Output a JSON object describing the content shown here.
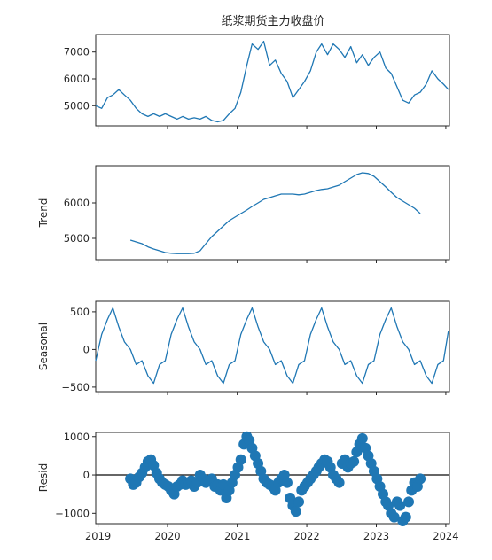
{
  "chart_data": [
    {
      "type": "line",
      "title": "纸浆期货主力收盘价",
      "xlabel": "",
      "ylabel": "",
      "xlim": [
        "2018-12-20",
        "2024-01-20"
      ],
      "ylim": [
        4250,
        7650
      ],
      "yticks": [
        5000,
        6000,
        7000
      ],
      "color": "#1f77b4",
      "x": [
        "2018-12-20",
        "2019-01-20",
        "2019-02-20",
        "2019-03-20",
        "2019-04-20",
        "2019-05-20",
        "2019-06-20",
        "2019-07-20",
        "2019-08-20",
        "2019-09-20",
        "2019-10-20",
        "2019-11-20",
        "2019-12-20",
        "2020-01-20",
        "2020-02-20",
        "2020-03-20",
        "2020-04-20",
        "2020-05-20",
        "2020-06-20",
        "2020-07-20",
        "2020-08-20",
        "2020-09-20",
        "2020-10-20",
        "2020-11-20",
        "2020-12-20",
        "2021-01-20",
        "2021-02-20",
        "2021-03-20",
        "2021-04-20",
        "2021-05-20",
        "2021-06-20",
        "2021-07-20",
        "2021-08-20",
        "2021-09-20",
        "2021-10-20",
        "2021-11-20",
        "2021-12-20",
        "2022-01-20",
        "2022-02-20",
        "2022-03-20",
        "2022-04-20",
        "2022-05-20",
        "2022-06-20",
        "2022-07-20",
        "2022-08-20",
        "2022-09-20",
        "2022-10-20",
        "2022-11-20",
        "2022-12-20",
        "2023-01-20",
        "2023-02-20",
        "2023-03-20",
        "2023-04-20",
        "2023-05-20",
        "2023-06-20",
        "2023-07-20",
        "2023-08-20",
        "2023-09-20",
        "2023-10-20",
        "2023-11-20",
        "2023-12-20",
        "2024-01-15"
      ],
      "y": [
        5000,
        4900,
        5300,
        5400,
        5600,
        5400,
        5200,
        4900,
        4700,
        4600,
        4700,
        4600,
        4700,
        4600,
        4500,
        4600,
        4500,
        4550,
        4500,
        4600,
        4450,
        4400,
        4450,
        4700,
        4900,
        5500,
        6500,
        7300,
        7100,
        7400,
        6500,
        6700,
        6200,
        5900,
        5300,
        5600,
        5900,
        6300,
        7000,
        7300,
        6900,
        7300,
        7100,
        6800,
        7200,
        6600,
        6900,
        6500,
        6800,
        7000,
        6400,
        6200,
        5700,
        5200,
        5100,
        5400,
        5500,
        5800,
        6300,
        6000,
        5800,
        5600
      ]
    },
    {
      "type": "line",
      "xlabel": "",
      "ylabel": "Trend",
      "xlim": [
        "2018-12-20",
        "2024-01-20"
      ],
      "ylim": [
        4400,
        7050
      ],
      "yticks": [
        5000,
        6000
      ],
      "color": "#1f77b4",
      "x": [
        "2019-06-20",
        "2019-07-20",
        "2019-08-20",
        "2019-09-20",
        "2019-10-20",
        "2019-11-20",
        "2019-12-20",
        "2020-01-20",
        "2020-02-20",
        "2020-03-20",
        "2020-04-20",
        "2020-05-20",
        "2020-06-20",
        "2020-07-20",
        "2020-08-20",
        "2020-09-20",
        "2020-10-20",
        "2020-11-20",
        "2020-12-20",
        "2021-01-20",
        "2021-02-20",
        "2021-03-20",
        "2021-04-20",
        "2021-05-20",
        "2021-06-20",
        "2021-07-20",
        "2021-08-20",
        "2021-09-20",
        "2021-10-20",
        "2021-11-20",
        "2021-12-20",
        "2022-01-20",
        "2022-02-20",
        "2022-03-20",
        "2022-04-20",
        "2022-05-20",
        "2022-06-20",
        "2022-07-20",
        "2022-08-20",
        "2022-09-20",
        "2022-10-20",
        "2022-11-20",
        "2022-12-20",
        "2023-01-20",
        "2023-02-20",
        "2023-03-20",
        "2023-04-20",
        "2023-05-20",
        "2023-06-20",
        "2023-07-20",
        "2023-08-20"
      ],
      "y": [
        4950,
        4900,
        4850,
        4760,
        4700,
        4650,
        4600,
        4580,
        4570,
        4570,
        4570,
        4580,
        4650,
        4850,
        5050,
        5200,
        5350,
        5500,
        5600,
        5700,
        5800,
        5900,
        6000,
        6100,
        6150,
        6200,
        6250,
        6250,
        6250,
        6230,
        6250,
        6300,
        6350,
        6380,
        6400,
        6450,
        6500,
        6600,
        6700,
        6800,
        6850,
        6830,
        6750,
        6600,
        6450,
        6300,
        6150,
        6050,
        5950,
        5850,
        5700
      ]
    },
    {
      "type": "line",
      "xlabel": "",
      "ylabel": "Seasonal",
      "xlim": [
        "2018-12-20",
        "2024-01-20"
      ],
      "ylim": [
        -560,
        640
      ],
      "yticks": [
        -500,
        0,
        500
      ],
      "color": "#1f77b4",
      "x": [
        "2018-12-20",
        "2019-01-20",
        "2019-02-20",
        "2019-03-20",
        "2019-04-20",
        "2019-05-20",
        "2019-06-20",
        "2019-07-20",
        "2019-08-20",
        "2019-09-20",
        "2019-10-20",
        "2019-11-20",
        "2019-12-20",
        "2020-01-20",
        "2020-02-20",
        "2020-03-20",
        "2020-04-20",
        "2020-05-20",
        "2020-06-20",
        "2020-07-20",
        "2020-08-20",
        "2020-09-20",
        "2020-10-20",
        "2020-11-20",
        "2020-12-20",
        "2021-01-20",
        "2021-02-20",
        "2021-03-20",
        "2021-04-20",
        "2021-05-20",
        "2021-06-20",
        "2021-07-20",
        "2021-08-20",
        "2021-09-20",
        "2021-10-20",
        "2021-11-20",
        "2021-12-20",
        "2022-01-20",
        "2022-02-20",
        "2022-03-20",
        "2022-04-20",
        "2022-05-20",
        "2022-06-20",
        "2022-07-20",
        "2022-08-20",
        "2022-09-20",
        "2022-10-20",
        "2022-11-20",
        "2022-12-20",
        "2023-01-20",
        "2023-02-20",
        "2023-03-20",
        "2023-04-20",
        "2023-05-20",
        "2023-06-20",
        "2023-07-20",
        "2023-08-20",
        "2023-09-20",
        "2023-10-20",
        "2023-11-20",
        "2023-12-20",
        "2024-01-15"
      ],
      "y": [
        -150,
        200,
        400,
        550,
        300,
        100,
        0,
        -200,
        -150,
        -350,
        -450,
        -200,
        -150,
        200,
        400,
        550,
        300,
        100,
        0,
        -200,
        -150,
        -350,
        -450,
        -200,
        -150,
        200,
        400,
        550,
        300,
        100,
        0,
        -200,
        -150,
        -350,
        -450,
        -200,
        -150,
        200,
        400,
        550,
        300,
        100,
        0,
        -200,
        -150,
        -350,
        -450,
        -200,
        -150,
        200,
        400,
        550,
        300,
        100,
        0,
        -200,
        -150,
        -350,
        -450,
        -200,
        -150,
        250
      ]
    },
    {
      "type": "scatter",
      "xlabel": "",
      "ylabel": "Resid",
      "xlim": [
        "2018-12-20",
        "2024-01-20"
      ],
      "ylim": [
        -1270,
        1110
      ],
      "yticks": [
        -1000,
        0,
        1000
      ],
      "xticks": [
        "2019",
        "2020",
        "2021",
        "2022",
        "2023",
        "2024"
      ],
      "baseline": 0,
      "color": "#1f77b4",
      "x": [
        "2019-06-20",
        "2019-07-05",
        "2019-07-20",
        "2019-08-05",
        "2019-08-20",
        "2019-09-05",
        "2019-09-20",
        "2019-10-05",
        "2019-10-20",
        "2019-11-05",
        "2019-11-20",
        "2019-12-05",
        "2019-12-20",
        "2020-01-05",
        "2020-01-20",
        "2020-02-05",
        "2020-02-20",
        "2020-03-05",
        "2020-03-20",
        "2020-04-05",
        "2020-04-20",
        "2020-05-05",
        "2020-05-20",
        "2020-06-05",
        "2020-06-20",
        "2020-07-05",
        "2020-07-20",
        "2020-08-05",
        "2020-08-20",
        "2020-09-05",
        "2020-09-20",
        "2020-10-05",
        "2020-10-20",
        "2020-11-05",
        "2020-11-20",
        "2020-12-05",
        "2020-12-20",
        "2021-01-05",
        "2021-01-20",
        "2021-02-05",
        "2021-02-20",
        "2021-03-05",
        "2021-03-20",
        "2021-04-05",
        "2021-04-20",
        "2021-05-05",
        "2021-05-20",
        "2021-06-05",
        "2021-06-20",
        "2021-07-05",
        "2021-07-20",
        "2021-08-05",
        "2021-08-20",
        "2021-09-05",
        "2021-09-20",
        "2021-10-05",
        "2021-10-20",
        "2021-11-05",
        "2021-11-20",
        "2021-12-05",
        "2021-12-20",
        "2022-01-05",
        "2022-01-20",
        "2022-02-05",
        "2022-02-20",
        "2022-03-05",
        "2022-03-20",
        "2022-04-05",
        "2022-04-20",
        "2022-05-05",
        "2022-05-20",
        "2022-06-05",
        "2022-06-20",
        "2022-07-05",
        "2022-07-20",
        "2022-08-05",
        "2022-08-20",
        "2022-09-05",
        "2022-09-20",
        "2022-10-05",
        "2022-10-20",
        "2022-11-05",
        "2022-11-20",
        "2022-12-05",
        "2022-12-20",
        "2023-01-05",
        "2023-01-20",
        "2023-02-05",
        "2023-02-20",
        "2023-03-05",
        "2023-03-20",
        "2023-04-05",
        "2023-04-20",
        "2023-05-05",
        "2023-05-20",
        "2023-06-05",
        "2023-06-20",
        "2023-07-05",
        "2023-07-20",
        "2023-08-05",
        "2023-08-20"
      ],
      "y": [
        -100,
        -250,
        -200,
        -50,
        50,
        200,
        350,
        400,
        250,
        50,
        -100,
        -200,
        -250,
        -300,
        -400,
        -500,
        -300,
        -250,
        -150,
        -250,
        -200,
        -150,
        -300,
        -200,
        0,
        -100,
        -200,
        -150,
        -100,
        -300,
        -250,
        -400,
        -250,
        -600,
        -400,
        -200,
        0,
        200,
        400,
        800,
        1000,
        900,
        700,
        500,
        300,
        100,
        -100,
        -200,
        -250,
        -300,
        -400,
        -200,
        -100,
        0,
        -200,
        -600,
        -800,
        -950,
        -700,
        -400,
        -300,
        -200,
        -100,
        0,
        100,
        200,
        300,
        400,
        350,
        200,
        0,
        -100,
        -200,
        300,
        400,
        200,
        300,
        350,
        600,
        800,
        950,
        700,
        500,
        300,
        100,
        -100,
        -300,
        -500,
        -700,
        -800,
        -1000,
        -1100,
        -700,
        -800,
        -1200,
        -1100,
        -700,
        -400,
        -200,
        -300,
        -100
      ]
    }
  ]
}
